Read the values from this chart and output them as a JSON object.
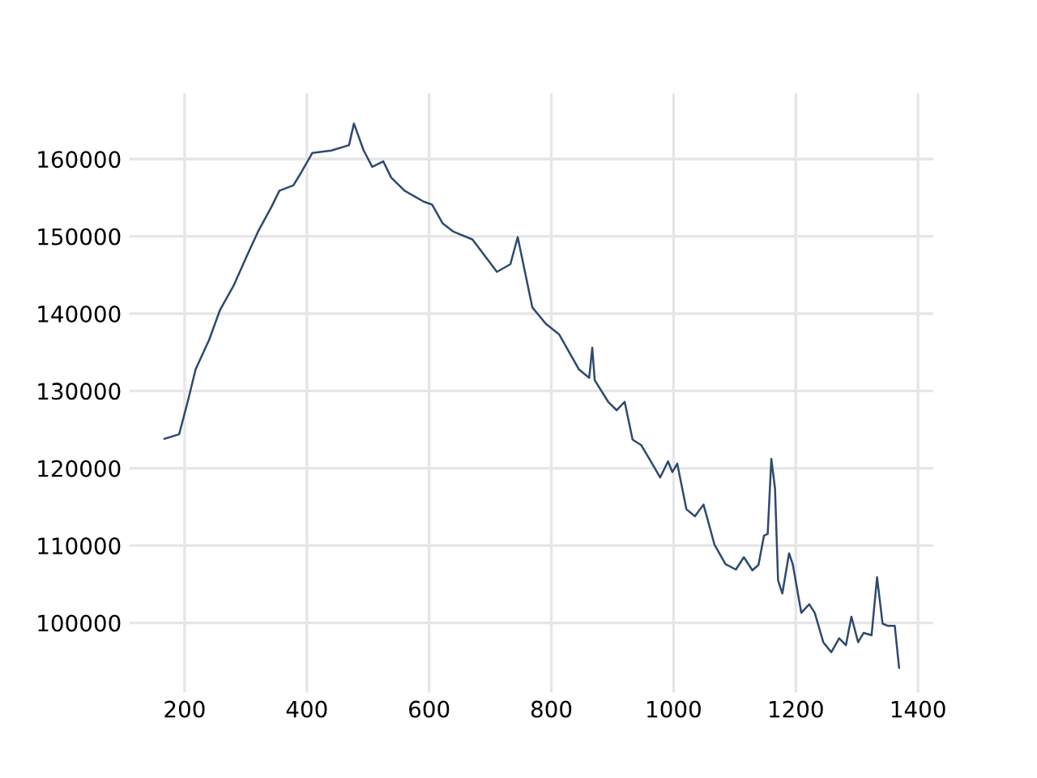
{
  "chart_data": {
    "type": "line",
    "x": [
      167,
      191,
      205,
      218,
      240,
      258,
      280,
      302,
      320,
      342,
      355,
      378,
      391,
      409,
      440,
      469,
      477,
      493,
      507,
      525,
      538,
      560,
      591,
      605,
      622,
      640,
      671,
      711,
      733,
      745,
      755,
      769,
      791,
      813,
      845,
      862,
      867,
      871,
      893,
      907,
      920,
      933,
      947,
      965,
      978,
      991,
      998,
      1006,
      1021,
      1035,
      1049,
      1055,
      1067,
      1085,
      1102,
      1115,
      1129,
      1139,
      1148,
      1154,
      1160,
      1166,
      1171,
      1178,
      1189,
      1195,
      1209,
      1222,
      1231,
      1245,
      1258,
      1271,
      1282,
      1291,
      1302,
      1311,
      1324,
      1333,
      1342,
      1351,
      1362,
      1369
    ],
    "series": [
      {
        "color": "#2e4a6e",
        "values": [
          123800,
          124400,
          128600,
          132800,
          136600,
          140500,
          143600,
          147500,
          150600,
          153800,
          155900,
          156600,
          158300,
          160800,
          161100,
          161800,
          164600,
          161100,
          159000,
          159700,
          157600,
          155900,
          154500,
          154100,
          151700,
          150600,
          149600,
          145400,
          146400,
          149900,
          146100,
          140800,
          138700,
          137300,
          132800,
          131700,
          135600,
          131400,
          128600,
          127500,
          128600,
          123700,
          123000,
          120600,
          118800,
          120900,
          119500,
          120600,
          114700,
          113800,
          115300,
          113600,
          110100,
          107600,
          106900,
          108500,
          106800,
          107500,
          111300,
          111500,
          121200,
          117400,
          105500,
          103800,
          109000,
          107600,
          101300,
          102400,
          101300,
          97500,
          96200,
          98000,
          97100,
          100800,
          97500,
          98700,
          98400,
          105900,
          99900,
          99600,
          99600,
          94200
        ]
      }
    ],
    "xlim": [
      110,
      1425
    ],
    "ylim": [
      91000,
      168500
    ],
    "xticks": [
      200,
      400,
      600,
      800,
      1000,
      1200,
      1400
    ],
    "yticks": [
      100000,
      110000,
      120000,
      130000,
      140000,
      150000,
      160000
    ],
    "grid": true,
    "marker": "none",
    "line_style": "solid"
  }
}
